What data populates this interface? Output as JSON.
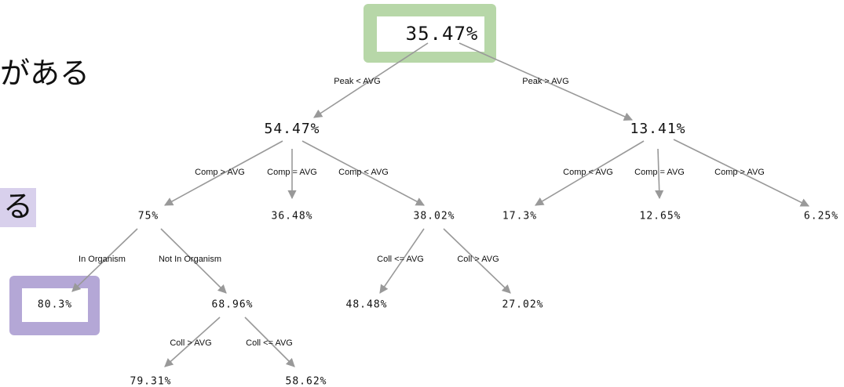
{
  "side_text": [
    "がある",
    "る"
  ],
  "nodes": [
    {
      "label": "35.47%"
    },
    {
      "label": "54.47%"
    },
    {
      "label": "13.41%"
    },
    {
      "label": "75%"
    },
    {
      "label": "36.48%"
    },
    {
      "label": "38.02%"
    },
    {
      "label": "17.3%"
    },
    {
      "label": "12.65%"
    },
    {
      "label": "6.25%"
    },
    {
      "label": "80.3%"
    },
    {
      "label": "68.96%"
    },
    {
      "label": "48.48%"
    },
    {
      "label": "27.02%"
    },
    {
      "label": "79.31%"
    },
    {
      "label": "58.62%"
    }
  ],
  "edges": [
    {
      "label": "Peak < AVG"
    },
    {
      "label": "Peak > AVG"
    },
    {
      "label": "Comp > AVG"
    },
    {
      "label": "Comp = AVG"
    },
    {
      "label": "Comp < AVG"
    },
    {
      "label": "Comp < AVG"
    },
    {
      "label": "Comp = AVG"
    },
    {
      "label": "Comp > AVG"
    },
    {
      "label": "In Organism"
    },
    {
      "label": "Not In Organism"
    },
    {
      "label": "Coll <= AVG"
    },
    {
      "label": "Coll > AVG"
    },
    {
      "label": "Coll > AVG"
    },
    {
      "label": "Coll <= AVG"
    }
  ]
}
